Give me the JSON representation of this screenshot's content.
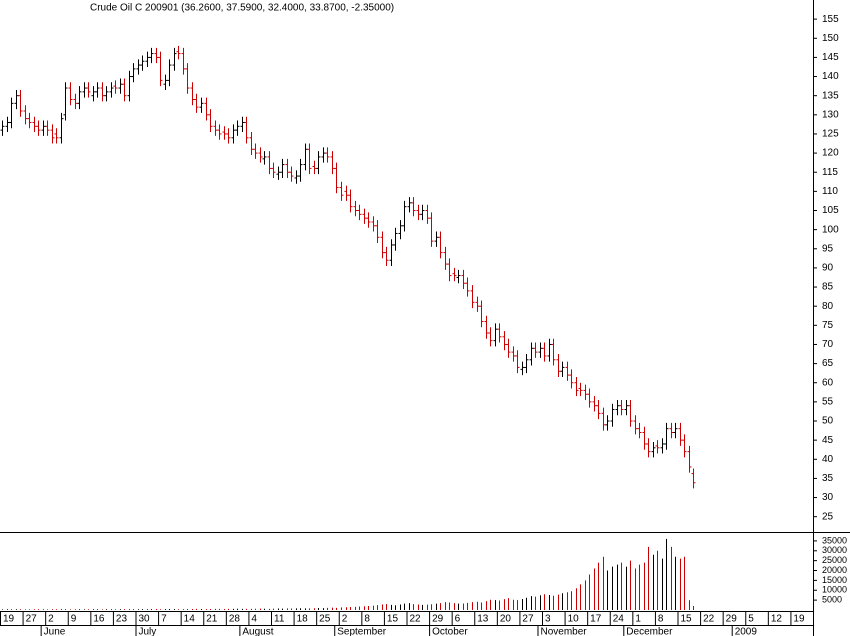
{
  "chart_data": [
    {
      "type": "ohlc",
      "title": "Crude Oil C 200901 (36.2600, 37.5900, 32.4000, 33.8700, -2.35000)",
      "up_color": "#000000",
      "down_color": "#cc0000",
      "open": [
        126,
        127,
        128,
        133,
        135,
        131,
        129,
        128,
        127,
        126,
        127,
        126,
        125,
        124,
        130,
        137,
        134,
        133,
        136,
        137,
        135,
        136,
        137,
        135,
        136,
        137.5,
        137,
        138,
        135,
        140,
        142,
        143,
        144,
        145,
        146,
        145,
        138,
        139,
        143,
        146.5,
        146,
        142,
        137,
        134,
        132,
        133,
        130,
        127,
        126,
        125.5,
        125,
        124,
        126,
        127,
        128,
        124,
        121,
        120,
        118.5,
        119,
        116,
        114.5,
        115,
        117,
        115,
        113.5,
        114,
        117,
        121,
        116.5,
        116,
        119,
        120,
        119,
        116,
        111,
        110,
        109,
        106,
        105,
        104,
        103,
        102,
        101,
        98,
        94,
        92,
        96,
        99,
        101,
        106,
        107,
        105,
        104,
        105,
        103,
        97,
        98,
        94,
        91,
        88.5,
        87.5,
        88,
        86,
        84,
        81,
        80,
        76,
        73,
        71,
        74,
        72,
        70,
        68,
        67,
        63.5,
        64,
        66,
        69,
        68,
        69,
        67,
        70,
        66,
        63,
        64,
        62,
        60,
        58.5,
        58,
        57,
        55,
        54,
        52,
        49,
        50,
        53,
        54,
        53,
        54,
        50,
        48,
        47,
        44,
        42,
        43.5,
        43,
        44,
        48,
        47,
        48,
        45,
        42,
        36.26
      ],
      "high": [
        128.5,
        129.5,
        134.5,
        136.5,
        136.5,
        132.5,
        130.5,
        129.5,
        128.5,
        128.5,
        128.5,
        127.5,
        126.5,
        130.5,
        138.5,
        138.5,
        135.5,
        137.5,
        138.5,
        138.5,
        137.5,
        138.5,
        138.5,
        137.5,
        138.5,
        139,
        139.5,
        139.5,
        141.5,
        143.5,
        144.5,
        145.5,
        146.5,
        147.5,
        147.5,
        146.5,
        140.5,
        144.5,
        147.5,
        148,
        147.5,
        143.5,
        138.5,
        135.5,
        134.5,
        134.5,
        131.5,
        128.5,
        127.5,
        127,
        126.5,
        127.5,
        128.5,
        129.5,
        129.5,
        125.5,
        122.5,
        121.5,
        120.5,
        120.5,
        117.5,
        116.5,
        118.5,
        118.5,
        116.5,
        115.5,
        118.5,
        122.5,
        122.5,
        118,
        120.5,
        121.5,
        121.5,
        120.5,
        117.5,
        112.5,
        111.5,
        110.5,
        107.5,
        106.5,
        105.5,
        104.5,
        103.5,
        102.5,
        99.5,
        95.5,
        97.5,
        100.5,
        102.5,
        107.5,
        108.5,
        108.5,
        106.5,
        106.5,
        106.5,
        104.5,
        99.5,
        99.5,
        95.5,
        92.5,
        90,
        89.5,
        89.5,
        87.5,
        85.5,
        82.5,
        81.5,
        77.5,
        74.5,
        75.5,
        75.5,
        73.5,
        71.5,
        69.5,
        68.5,
        65.5,
        67.5,
        70.5,
        70.5,
        70.5,
        70.5,
        71.5,
        71.5,
        67.5,
        65.5,
        65.5,
        63.5,
        61.5,
        60,
        59.5,
        58.5,
        56.5,
        55.5,
        53.5,
        51.5,
        54.5,
        55.5,
        55.5,
        55.5,
        55.5,
        51.5,
        49.5,
        48.5,
        45.5,
        44.5,
        45,
        45.5,
        49.5,
        49.5,
        49.5,
        49.5,
        46.5,
        43.5,
        37.59
      ],
      "low": [
        124.5,
        125.5,
        126.5,
        131.5,
        129.5,
        127.5,
        126.5,
        125.5,
        124.5,
        124.5,
        124.5,
        122.5,
        122.5,
        122.5,
        128.5,
        132.5,
        131.5,
        131.5,
        134.5,
        134.5,
        133.5,
        134.5,
        133.5,
        133.5,
        134.5,
        135.5,
        135.5,
        133.5,
        133.5,
        138.5,
        140.5,
        141.5,
        142.5,
        143.5,
        143.5,
        137.5,
        136.5,
        137.5,
        141.5,
        144.5,
        140.5,
        135.5,
        132.5,
        130.5,
        130.5,
        128.5,
        125.5,
        124.5,
        123.5,
        123.5,
        122.5,
        122.5,
        124.5,
        125.5,
        122.5,
        119.5,
        118.5,
        117.5,
        117,
        114.5,
        113.5,
        113,
        113.5,
        113.5,
        112.5,
        112,
        112.5,
        115.5,
        114.5,
        114.5,
        114.5,
        117.5,
        117.5,
        114.5,
        109.5,
        107.5,
        107.5,
        104.5,
        103.5,
        102.5,
        101.5,
        100.5,
        99.5,
        96.5,
        92.5,
        90.5,
        90.5,
        94.5,
        97.5,
        99.5,
        104.5,
        103.5,
        102.5,
        102.5,
        101.5,
        95.5,
        95.5,
        92.5,
        89.5,
        86.5,
        86.5,
        86,
        84.5,
        82.5,
        79.5,
        78.5,
        74.5,
        71.5,
        69.5,
        69.5,
        70.5,
        68.5,
        66.5,
        65.5,
        62.5,
        62,
        62.5,
        64.5,
        66.5,
        66.5,
        65.5,
        65.5,
        64.5,
        61.5,
        61.5,
        60.5,
        58.5,
        56.5,
        56.5,
        55.5,
        53.5,
        52.5,
        50.5,
        47.5,
        47.5,
        48.5,
        51.5,
        51.5,
        51.5,
        48.5,
        46.5,
        45.5,
        42.5,
        40.5,
        40.5,
        41.5,
        41.5,
        42.5,
        45.5,
        45.5,
        43.5,
        40.5,
        36.5,
        32.4
      ],
      "close": [
        127,
        128,
        133,
        135,
        131,
        129,
        128,
        127,
        126,
        127,
        126,
        124,
        124,
        129,
        137,
        134,
        133,
        136,
        137,
        136,
        136,
        137,
        135,
        136,
        137,
        137,
        138,
        135,
        140,
        142,
        143,
        144,
        145,
        146,
        145,
        139,
        139,
        143,
        146,
        146,
        142,
        137,
        134,
        132,
        133,
        130,
        127,
        126,
        125,
        125,
        124,
        126,
        127,
        128,
        124,
        121,
        120,
        119,
        119,
        116,
        115,
        115,
        117,
        115,
        114,
        114,
        117,
        121,
        116,
        116,
        119,
        120,
        119,
        116,
        111,
        109,
        109,
        106,
        105,
        104,
        103,
        102,
        101,
        98,
        94,
        92,
        96,
        99,
        101,
        106,
        107,
        105,
        104,
        105,
        103,
        97,
        98,
        94,
        91,
        88,
        88,
        88,
        86,
        84,
        81,
        80,
        76,
        73,
        71,
        74,
        72,
        70,
        68,
        67,
        64,
        64,
        66,
        69,
        68,
        69,
        67,
        70,
        66,
        63,
        64,
        62,
        60,
        58,
        58,
        57,
        55,
        54,
        52,
        49,
        50,
        53,
        54,
        53,
        54,
        50,
        48,
        47,
        44,
        42,
        43,
        43,
        44,
        48,
        47,
        48,
        45,
        42,
        38,
        33.87
      ],
      "ylim": [
        21,
        160
      ],
      "yticks": [
        25,
        30,
        35,
        40,
        45,
        50,
        55,
        60,
        65,
        70,
        75,
        80,
        85,
        90,
        95,
        100,
        105,
        110,
        115,
        120,
        125,
        130,
        135,
        140,
        145,
        150,
        155
      ],
      "xlim": [
        0,
        180
      ],
      "xticks": [
        {
          "value": 0,
          "label": "19"
        },
        {
          "value": 5,
          "label": "27"
        },
        {
          "value": 10,
          "label": "2"
        },
        {
          "value": 15,
          "label": "9"
        },
        {
          "value": 20,
          "label": "16"
        },
        {
          "value": 25,
          "label": "23"
        },
        {
          "value": 30,
          "label": "30"
        },
        {
          "value": 35,
          "label": "7"
        },
        {
          "value": 40,
          "label": "14"
        },
        {
          "value": 45,
          "label": "21"
        },
        {
          "value": 50,
          "label": "28"
        },
        {
          "value": 55,
          "label": "4"
        },
        {
          "value": 60,
          "label": "11"
        },
        {
          "value": 65,
          "label": "18"
        },
        {
          "value": 70,
          "label": "25"
        },
        {
          "value": 75,
          "label": "2"
        },
        {
          "value": 80,
          "label": "8"
        },
        {
          "value": 85,
          "label": "15"
        },
        {
          "value": 90,
          "label": "22"
        },
        {
          "value": 95,
          "label": "29"
        },
        {
          "value": 100,
          "label": "6"
        },
        {
          "value": 105,
          "label": "13"
        },
        {
          "value": 110,
          "label": "20"
        },
        {
          "value": 115,
          "label": "27"
        },
        {
          "value": 120,
          "label": "3"
        },
        {
          "value": 125,
          "label": "10"
        },
        {
          "value": 130,
          "label": "17"
        },
        {
          "value": 135,
          "label": "24"
        },
        {
          "value": 140,
          "label": "1"
        },
        {
          "value": 145,
          "label": "8"
        },
        {
          "value": 150,
          "label": "15"
        },
        {
          "value": 155,
          "label": "22"
        },
        {
          "value": 160,
          "label": "29"
        },
        {
          "value": 165,
          "label": "5"
        },
        {
          "value": 170,
          "label": "12"
        },
        {
          "value": 175,
          "label": "19"
        }
      ],
      "month_ticks": [
        {
          "value": 9,
          "label": "June"
        },
        {
          "value": 30,
          "label": "July"
        },
        {
          "value": 53,
          "label": "August"
        },
        {
          "value": 74,
          "label": "September"
        },
        {
          "value": 95,
          "label": "October"
        },
        {
          "value": 119,
          "label": "November"
        },
        {
          "value": 138,
          "label": "December"
        },
        {
          "value": 162,
          "label": "2009"
        }
      ]
    },
    {
      "type": "bar",
      "values": [
        300,
        350,
        300,
        400,
        350,
        300,
        300,
        400,
        350,
        300,
        300,
        350,
        400,
        350,
        400,
        300,
        350,
        400,
        300,
        350,
        350,
        400,
        300,
        350,
        400,
        350,
        400,
        450,
        400,
        350,
        400,
        450,
        400,
        450,
        500,
        400,
        450,
        500,
        450,
        400,
        450,
        500,
        500,
        550,
        500,
        450,
        500,
        550,
        600,
        500,
        550,
        600,
        650,
        600,
        550,
        600,
        650,
        700,
        650,
        600,
        700,
        750,
        700,
        800,
        750,
        800,
        900,
        850,
        800,
        900,
        1000,
        950,
        1100,
        1200,
        1100,
        1300,
        1400,
        1500,
        1600,
        1800,
        1900,
        2000,
        2200,
        2500,
        2800,
        3000,
        2600,
        2400,
        2800,
        3200,
        3500,
        3000,
        2800,
        2600,
        2700,
        2900,
        3200,
        3500,
        4000,
        3800,
        3500,
        3200,
        3300,
        3600,
        4000,
        4200,
        3800,
        4500,
        5200,
        5000,
        4800,
        5500,
        6000,
        5200,
        5000,
        5600,
        6200,
        7000,
        6800,
        7500,
        8000,
        7600,
        7200,
        7800,
        8500,
        9000,
        9500,
        11000,
        13000,
        15000,
        18000,
        21000,
        24000,
        27000,
        20000,
        22000,
        23000,
        24000,
        22000,
        25000,
        21000,
        23000,
        24000,
        32000,
        28000,
        30000,
        26000,
        36000,
        32000,
        27000,
        26000,
        27000,
        5000,
        2000
      ],
      "ylim": [
        0,
        39000
      ],
      "yticks": [
        5000,
        10000,
        15000,
        20000,
        25000,
        30000,
        35000
      ]
    }
  ]
}
